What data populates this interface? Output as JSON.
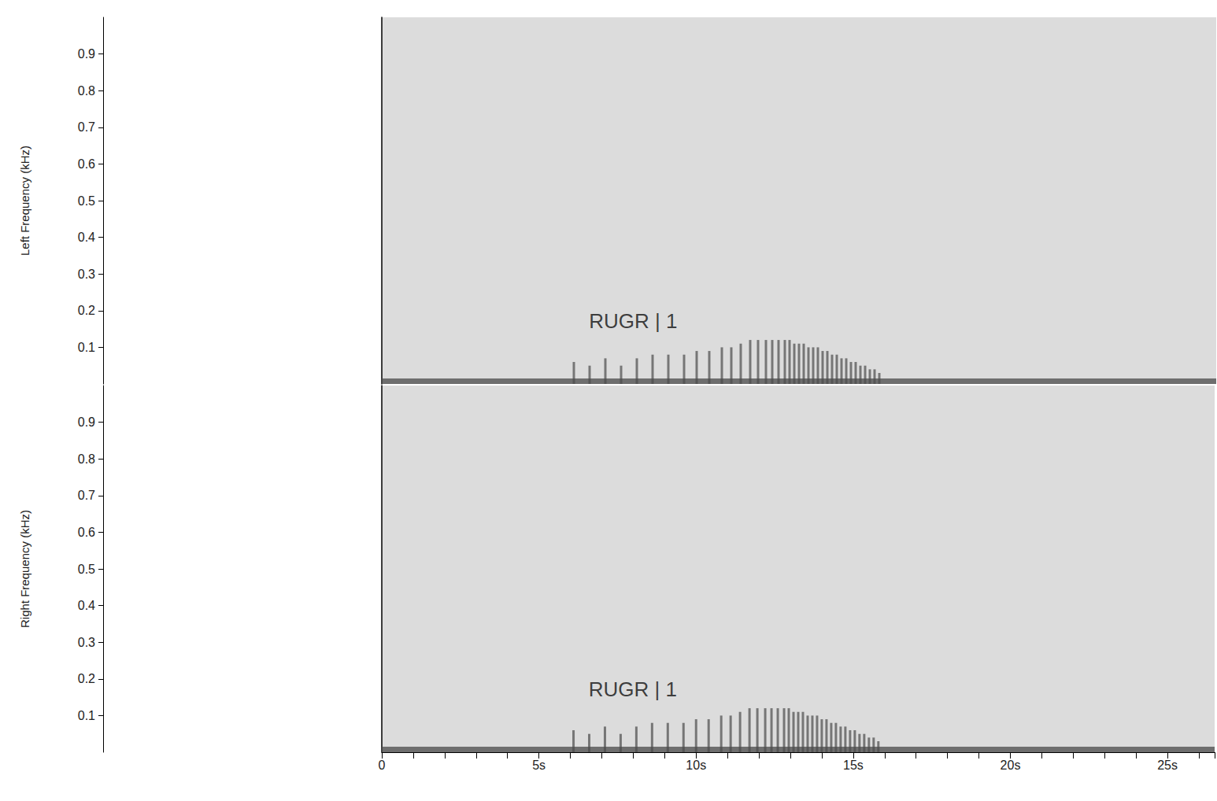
{
  "chart_data": [
    {
      "type": "spectrogram",
      "ylabel": "Left Frequency (kHz)",
      "tick_labels": "y",
      "xlim": [
        0,
        26.5
      ],
      "xticks": [
        {
          "value": 0,
          "label": "0"
        },
        {
          "value": 5,
          "label": "5s"
        },
        {
          "value": 10,
          "label": "10s"
        },
        {
          "value": 15,
          "label": "15s"
        },
        {
          "value": 20,
          "label": "20s"
        },
        {
          "value": 25,
          "label": "25s"
        }
      ],
      "ylim": [
        0,
        1
      ],
      "yticks": [
        0.1,
        0.2,
        0.3,
        0.4,
        0.5,
        0.6,
        0.7,
        0.8,
        0.9
      ],
      "color": "#4a4a4a",
      "low_band": [
        0,
        0.015
      ],
      "pulses": {
        "times": [
          6.1,
          6.6,
          7.1,
          7.6,
          8.1,
          8.6,
          9.1,
          9.6,
          10.0,
          10.4,
          10.8,
          11.1,
          11.4,
          11.7,
          11.95,
          12.2,
          12.4,
          12.6,
          12.8,
          12.95,
          13.1,
          13.25,
          13.4,
          13.55,
          13.7,
          13.85,
          14.0,
          14.15,
          14.3,
          14.45,
          14.6,
          14.75,
          14.9,
          15.05,
          15.2,
          15.35,
          15.5,
          15.65,
          15.8
        ],
        "top": [
          0.06,
          0.05,
          0.07,
          0.05,
          0.07,
          0.08,
          0.08,
          0.08,
          0.09,
          0.09,
          0.1,
          0.1,
          0.11,
          0.12,
          0.12,
          0.12,
          0.12,
          0.12,
          0.12,
          0.12,
          0.11,
          0.11,
          0.11,
          0.1,
          0.1,
          0.1,
          0.09,
          0.09,
          0.08,
          0.08,
          0.07,
          0.07,
          0.06,
          0.06,
          0.05,
          0.05,
          0.04,
          0.04,
          0.03
        ]
      },
      "annotations": [
        {
          "text": "RUGR | 1",
          "x": 6.58,
          "y": 0.171
        }
      ]
    },
    {
      "type": "spectrogram",
      "ylabel": "Right Frequency (kHz)",
      "xlim": [
        0,
        26.5
      ],
      "xticks": [
        {
          "value": 0,
          "label": "0"
        },
        {
          "value": 5,
          "label": "5s"
        },
        {
          "value": 10,
          "label": "10s"
        },
        {
          "value": 15,
          "label": "15s"
        },
        {
          "value": 20,
          "label": "20s"
        },
        {
          "value": 25,
          "label": "25s"
        }
      ],
      "ylim": [
        0,
        1
      ],
      "yticks": [
        0.1,
        0.2,
        0.3,
        0.4,
        0.5,
        0.6,
        0.7,
        0.8,
        0.9
      ],
      "color": "#4a4a4a",
      "low_band": [
        0,
        0.015
      ],
      "pulses": {
        "times": [
          6.1,
          6.6,
          7.1,
          7.6,
          8.1,
          8.6,
          9.1,
          9.6,
          10.0,
          10.4,
          10.8,
          11.1,
          11.4,
          11.7,
          11.95,
          12.2,
          12.4,
          12.6,
          12.8,
          12.95,
          13.1,
          13.25,
          13.4,
          13.55,
          13.7,
          13.85,
          14.0,
          14.15,
          14.3,
          14.45,
          14.6,
          14.75,
          14.9,
          15.05,
          15.2,
          15.35,
          15.5,
          15.65,
          15.8
        ],
        "top": [
          0.06,
          0.05,
          0.07,
          0.05,
          0.07,
          0.08,
          0.08,
          0.08,
          0.09,
          0.09,
          0.1,
          0.1,
          0.11,
          0.12,
          0.12,
          0.12,
          0.12,
          0.12,
          0.12,
          0.12,
          0.11,
          0.11,
          0.11,
          0.1,
          0.1,
          0.1,
          0.09,
          0.09,
          0.08,
          0.08,
          0.07,
          0.07,
          0.06,
          0.06,
          0.05,
          0.05,
          0.04,
          0.04,
          0.03
        ]
      },
      "annotations": [
        {
          "text": "RUGR | 1",
          "x": 6.58,
          "y": 0.171
        }
      ]
    }
  ]
}
